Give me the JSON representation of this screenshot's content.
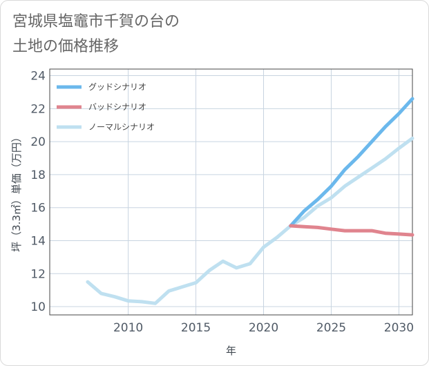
{
  "title_lines": [
    "宮城県塩竈市千賀の台の",
    "土地の価格推移"
  ],
  "colors": {
    "good": "#6bb8ec",
    "bad": "#e0848e",
    "normal": "#bfe0f0",
    "grid": "#c8d4e0"
  },
  "chart_data": {
    "type": "line",
    "title": "宮城県塩竈市千賀の台の土地の価格推移",
    "xlabel": "年",
    "ylabel": "坪（3.3㎡）単価（万円）",
    "xlim": [
      2004.2,
      2031.0
    ],
    "ylim": [
      9.5,
      24.4
    ],
    "xticks": [
      2010,
      2015,
      2020,
      2025,
      2030
    ],
    "yticks": [
      10,
      12,
      14,
      16,
      18,
      20,
      22,
      24
    ],
    "grid": true,
    "legend_position": "top-left",
    "series": [
      {
        "name": "グッドシナリオ",
        "color": "#6bb8ec",
        "points": [
          [
            2022,
            14.9
          ],
          [
            2023,
            15.8
          ],
          [
            2024,
            16.5
          ],
          [
            2025,
            17.3
          ],
          [
            2026,
            18.3
          ],
          [
            2027,
            19.1
          ],
          [
            2028,
            20.0
          ],
          [
            2029,
            20.9
          ],
          [
            2030,
            21.7
          ],
          [
            2031,
            22.6
          ]
        ]
      },
      {
        "name": "バッドシナリオ",
        "color": "#e0848e",
        "points": [
          [
            2022,
            14.9
          ],
          [
            2023,
            14.85
          ],
          [
            2024,
            14.8
          ],
          [
            2025,
            14.7
          ],
          [
            2026,
            14.6
          ],
          [
            2027,
            14.6
          ],
          [
            2028,
            14.6
          ],
          [
            2029,
            14.45
          ],
          [
            2030,
            14.4
          ],
          [
            2031,
            14.35
          ]
        ]
      },
      {
        "name": "ノーマルシナリオ",
        "color": "#bfe0f0",
        "points": [
          [
            2007,
            11.5
          ],
          [
            2008,
            10.8
          ],
          [
            2009,
            10.6
          ],
          [
            2010,
            10.35
          ],
          [
            2011,
            10.3
          ],
          [
            2012,
            10.2
          ],
          [
            2013,
            10.95
          ],
          [
            2014,
            11.2
          ],
          [
            2015,
            11.45
          ],
          [
            2016,
            12.2
          ],
          [
            2017,
            12.75
          ],
          [
            2018,
            12.35
          ],
          [
            2019,
            12.6
          ],
          [
            2020,
            13.6
          ],
          [
            2021,
            14.2
          ],
          [
            2022,
            14.9
          ],
          [
            2023,
            15.4
          ],
          [
            2024,
            16.1
          ],
          [
            2025,
            16.6
          ],
          [
            2026,
            17.3
          ],
          [
            2027,
            17.85
          ],
          [
            2028,
            18.4
          ],
          [
            2029,
            18.95
          ],
          [
            2030,
            19.6
          ],
          [
            2031,
            20.2
          ]
        ]
      }
    ]
  }
}
